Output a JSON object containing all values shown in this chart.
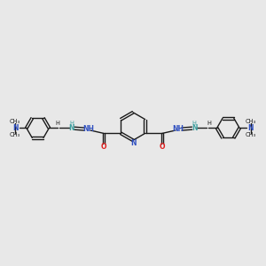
{
  "background_color": "#e8e8e8",
  "bond_color": "#1a1a1a",
  "N_color": "#3050c0",
  "O_color": "#e02020",
  "imine_N_color": "#40a0a0",
  "NMe2_N_color": "#3050c0",
  "figsize": [
    3.0,
    3.0
  ],
  "dpi": 100,
  "xlim": [
    0,
    20
  ],
  "ylim": [
    0,
    20
  ]
}
